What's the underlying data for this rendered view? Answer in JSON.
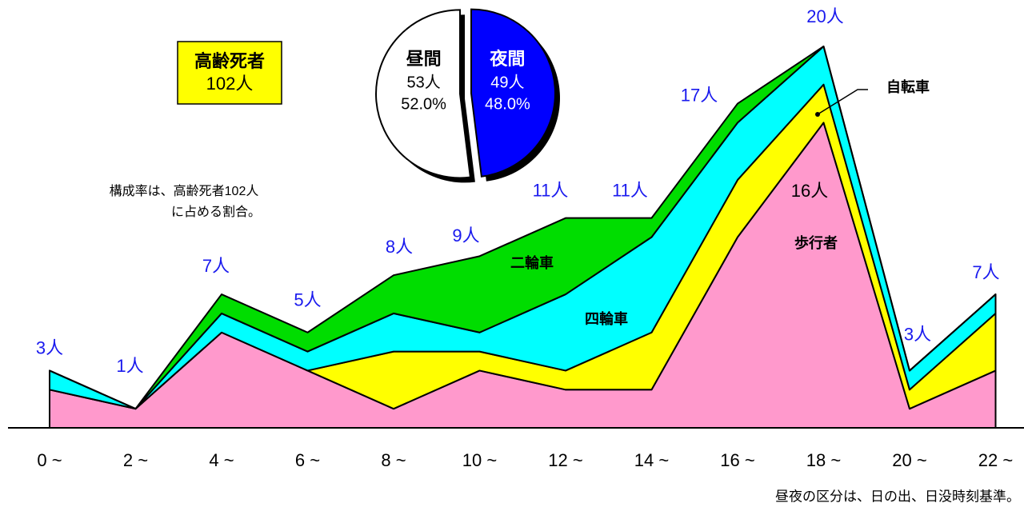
{
  "chart_data": {
    "type": "stacked_area",
    "categories": [
      "0 ~",
      "2 ~",
      "4 ~",
      "6 ~",
      "8 ~",
      "10 ~",
      "12 ~",
      "14 ~",
      "16 ~",
      "18 ~",
      "20 ~",
      "22 ~"
    ],
    "series": [
      {
        "name": "歩行者",
        "color": "#ff99cc",
        "values": [
          2,
          1,
          5,
          3,
          1,
          3,
          2,
          2,
          10,
          16,
          1,
          3
        ]
      },
      {
        "name": "自転車",
        "color": "#ffff00",
        "values": [
          0,
          0,
          0,
          0,
          3,
          1,
          1,
          3,
          3,
          2,
          1,
          3
        ]
      },
      {
        "name": "四輪車",
        "color": "#00ffff",
        "values": [
          1,
          0,
          1,
          1,
          2,
          1,
          4,
          5,
          3,
          2,
          1,
          1
        ]
      },
      {
        "name": "二輪車",
        "color": "#00dd00",
        "values": [
          0,
          0,
          1,
          1,
          2,
          4,
          4,
          1,
          1,
          0,
          0,
          0
        ]
      }
    ],
    "total_labels": [
      "3人",
      "1人",
      "7人",
      "5人",
      "8人",
      "9人",
      "11人",
      "11人",
      "17人",
      "20人",
      "3人",
      "7人"
    ],
    "pedestrian_label": "16人",
    "box": {
      "title": "高齢死者",
      "value": "102人"
    },
    "note": [
      "構成率は、高齢死者102人",
      "に占める割合。"
    ],
    "footnote": "昼夜の区分は、日の出、日没時刻基準。",
    "pie": {
      "type": "pie",
      "slices": [
        {
          "name": "夜間",
          "color": "#0000ff",
          "value": 49,
          "value_label": "49人",
          "percent": {
            "value": 48.0,
            "label": "48.0%"
          }
        },
        {
          "name": "昼間",
          "color": "#ffffff",
          "value": 53,
          "value_label": "53人",
          "percent": {
            "value": 52.0,
            "label": "52.0%"
          }
        }
      ]
    }
  }
}
